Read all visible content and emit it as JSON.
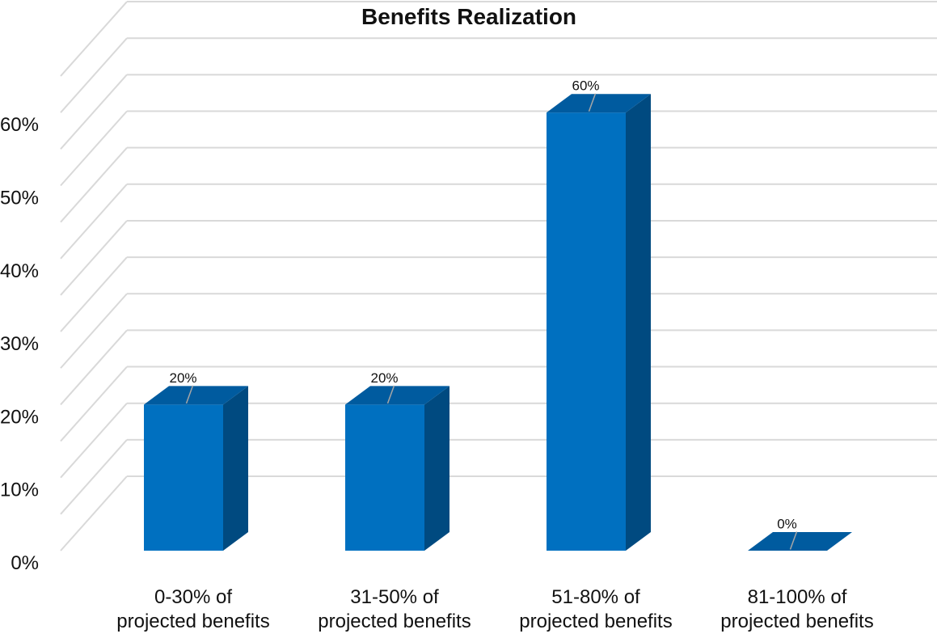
{
  "chart_data": {
    "type": "bar",
    "title": "Benefits Realization",
    "categories": [
      [
        "0-30% of",
        "projected benefits"
      ],
      [
        "31-50% of",
        "projected benefits"
      ],
      [
        "51-80% of",
        "projected benefits"
      ],
      [
        "81-100% of",
        "projected benefits"
      ]
    ],
    "values": [
      20,
      20,
      60,
      0
    ],
    "data_labels": [
      "20%",
      "20%",
      "60%",
      "0%"
    ],
    "y_ticks": [
      "0%",
      "10%",
      "20%",
      "30%",
      "40%",
      "50%",
      "60%"
    ],
    "ylim": [
      0,
      70
    ],
    "grid": true,
    "style_3d": true,
    "legend": "none",
    "colors": {
      "bar_front": "#0070C0",
      "bar_side": "#004A80",
      "bar_top": "#005B9F",
      "gridline": "#D9D9D9",
      "leader": "#A6A6A6"
    }
  }
}
